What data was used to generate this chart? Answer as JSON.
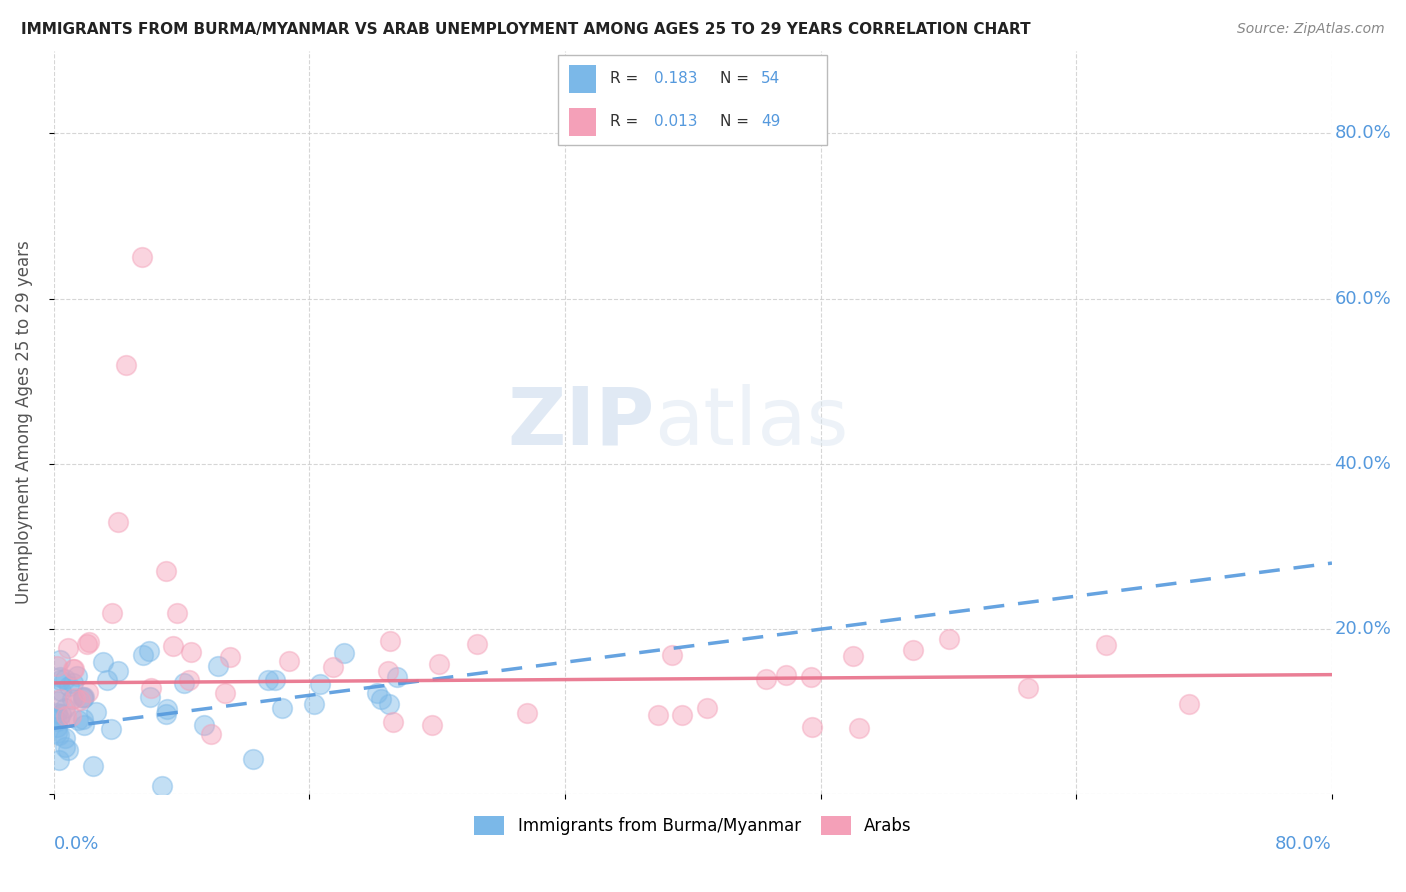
{
  "title": "IMMIGRANTS FROM BURMA/MYANMAR VS ARAB UNEMPLOYMENT AMONG AGES 25 TO 29 YEARS CORRELATION CHART",
  "source": "Source: ZipAtlas.com",
  "ylabel": "Unemployment Among Ages 25 to 29 years",
  "ytick_values": [
    0,
    20,
    40,
    60,
    80
  ],
  "xtick_values": [
    0,
    16,
    32,
    48,
    64,
    80
  ],
  "watermark_zip": "ZIP",
  "watermark_atlas": "atlas",
  "legend_r1": "R = 0.183",
  "legend_n1": "N = 54",
  "legend_r2": "R = 0.013",
  "legend_n2": "N = 49",
  "blue_color": "#7BB8E8",
  "pink_color": "#F4A0B8",
  "blue_line_color": "#5599DD",
  "pink_line_color": "#E8708A",
  "title_color": "#222222",
  "source_color": "#888888",
  "axis_color": "#5599DD",
  "r_label_color": "#333333",
  "r_value_color": "#5599DD",
  "grid_color": "#CCCCCC",
  "blue_trend_start_y": 8.0,
  "blue_trend_end_y": 28.0,
  "pink_trend_start_y": 13.5,
  "pink_trend_end_y": 14.5,
  "xlim": [
    0,
    80
  ],
  "ylim": [
    0,
    90
  ]
}
